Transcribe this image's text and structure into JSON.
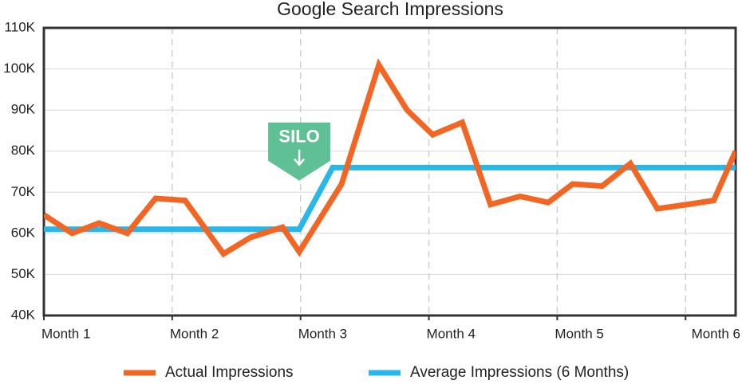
{
  "chart_data": {
    "type": "line",
    "title": "Google Search Impressions",
    "xlim": [
      1,
      6.39
    ],
    "xticks": [
      {
        "value": 1,
        "label": "Month 1"
      },
      {
        "value": 2,
        "label": "Month 2"
      },
      {
        "value": 3,
        "label": "Month 3"
      },
      {
        "value": 4,
        "label": "Month 4"
      },
      {
        "value": 5,
        "label": "Month 5"
      },
      {
        "value": 6,
        "label": "Month 6"
      }
    ],
    "ylim": [
      40000,
      110000
    ],
    "yticks": [
      {
        "value": 40000,
        "label": "40K"
      },
      {
        "value": 50000,
        "label": "50K"
      },
      {
        "value": 60000,
        "label": "60K"
      },
      {
        "value": 70000,
        "label": "70K"
      },
      {
        "value": 80000,
        "label": "80K"
      },
      {
        "value": 90000,
        "label": "90K"
      },
      {
        "value": 100000,
        "label": "100K"
      },
      {
        "value": 110000,
        "label": "110K"
      }
    ],
    "grid": true,
    "legend": "bottom",
    "series": [
      {
        "name": "Actual Impressions",
        "color": "#f26522",
        "x": [
          1,
          1.22,
          1.43,
          1.65,
          1.87,
          2.1,
          2.4,
          2.61,
          2.86,
          2.99,
          3.32,
          3.61,
          3.83,
          4.03,
          4.26,
          4.48,
          4.71,
          4.93,
          5.12,
          5.35,
          5.57,
          5.78,
          6.01,
          6.22,
          6.39
        ],
        "values": [
          64500,
          60000,
          62500,
          60000,
          68500,
          68000,
          55000,
          59000,
          61500,
          55500,
          72000,
          101000,
          90000,
          84000,
          87000,
          67000,
          69000,
          67500,
          72000,
          71500,
          77000,
          66000,
          67000,
          68000,
          80000
        ]
      },
      {
        "name": "Average Impressions (6 Months)",
        "color": "#29b6e8",
        "x": [
          1,
          2.99,
          3.25,
          6.39
        ],
        "values": [
          61000,
          61000,
          76000,
          76000
        ]
      }
    ],
    "annotations": [
      {
        "text": "SILO",
        "x": 2.99,
        "y": 80000
      }
    ]
  }
}
